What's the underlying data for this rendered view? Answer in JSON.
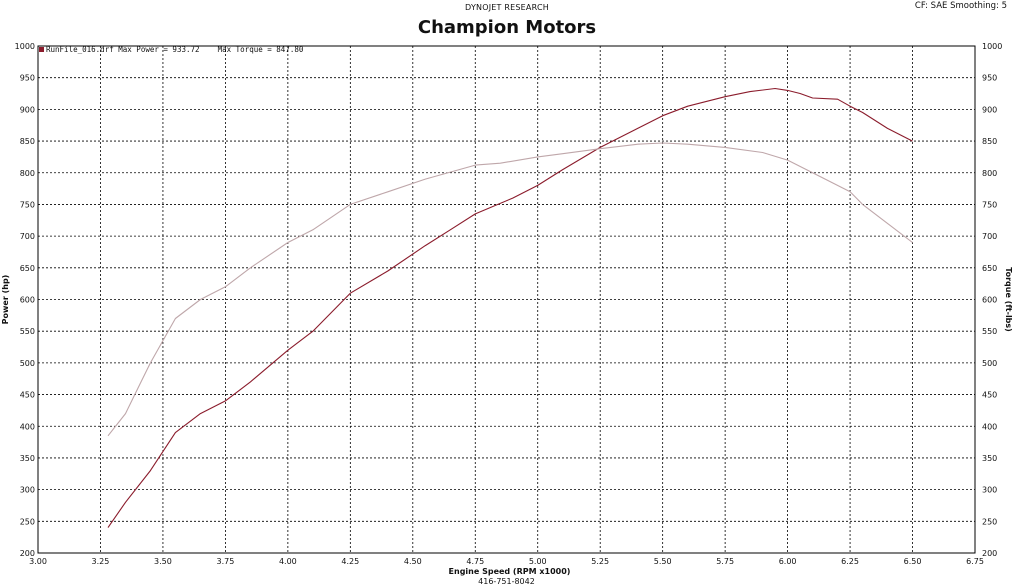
{
  "header": {
    "brand": "DYNOJET RESEARCH",
    "title": "Champion Motors",
    "corner": "CF: SAE  Smoothing: 5"
  },
  "footer": {
    "phone": "416-751-8042"
  },
  "chart_data": {
    "type": "line",
    "title": "Champion Motors",
    "xlabel": "Engine Speed (RPM x1000)",
    "ylabel": "Power (hp)",
    "y2label": "Torque (ft-lbs)",
    "xlim": [
      3.0,
      6.75
    ],
    "ylim": [
      200,
      1000
    ],
    "y2lim": [
      200,
      1000
    ],
    "grid": true,
    "legend_placement": "top-left",
    "legend_text": "RunFile_016.drf Max Power = 933.72    Max Torque = 847.80",
    "xticks": [
      "3.00",
      "3.25",
      "3.50",
      "3.75",
      "4.00",
      "4.25",
      "4.50",
      "4.75",
      "5.00",
      "5.25",
      "5.50",
      "5.75",
      "6.00",
      "6.25",
      "6.50",
      "6.75"
    ],
    "yticks": [
      "200",
      "250",
      "300",
      "350",
      "400",
      "450",
      "500",
      "550",
      "600",
      "650",
      "700",
      "750",
      "800",
      "850",
      "900",
      "950",
      "1000"
    ],
    "series": [
      {
        "name": "Power",
        "color": "#8b1c2c",
        "x": [
          3.28,
          3.35,
          3.45,
          3.5,
          3.55,
          3.65,
          3.75,
          3.85,
          4.0,
          4.1,
          4.25,
          4.4,
          4.55,
          4.65,
          4.75,
          4.9,
          5.0,
          5.1,
          5.25,
          5.4,
          5.5,
          5.6,
          5.75,
          5.85,
          5.95,
          6.0,
          6.05,
          6.1,
          6.2,
          6.25,
          6.3,
          6.4,
          6.5
        ],
        "y": [
          240,
          280,
          330,
          360,
          390,
          420,
          440,
          470,
          520,
          550,
          610,
          645,
          685,
          710,
          735,
          760,
          780,
          805,
          840,
          870,
          890,
          905,
          920,
          928,
          933,
          930,
          925,
          918,
          916,
          905,
          895,
          870,
          850
        ]
      },
      {
        "name": "Torque",
        "color": "#bfa7aa",
        "x": [
          3.28,
          3.35,
          3.4,
          3.45,
          3.55,
          3.65,
          3.75,
          3.85,
          4.0,
          4.1,
          4.25,
          4.4,
          4.55,
          4.75,
          4.85,
          5.0,
          5.1,
          5.25,
          5.4,
          5.5,
          5.6,
          5.75,
          5.9,
          6.0,
          6.1,
          6.25,
          6.3,
          6.4,
          6.5
        ],
        "y": [
          385,
          420,
          460,
          500,
          570,
          600,
          620,
          650,
          690,
          710,
          750,
          770,
          790,
          812,
          815,
          825,
          830,
          838,
          845,
          847,
          845,
          840,
          832,
          820,
          800,
          770,
          750,
          720,
          690
        ]
      }
    ]
  }
}
